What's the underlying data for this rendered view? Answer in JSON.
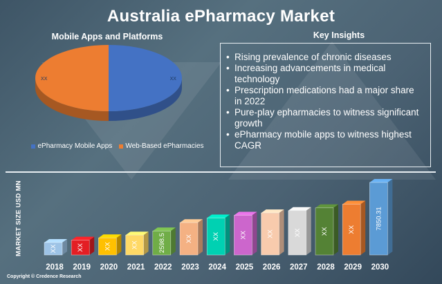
{
  "title": "Australia ePharmacy Market",
  "pie_section": {
    "title": "Mobile Apps and Platforms"
  },
  "insights": {
    "title": "Key Insights",
    "items": [
      "Rising prevalence of chronic diseases",
      "Increasing advancements in medical technology",
      "Prescription medications had a major share in 2022",
      "Pure-play epharmacies to witness significant growth",
      "ePharmacy mobile apps to witness highest CAGR"
    ]
  },
  "copyright": "Copyright © Credence Research",
  "chart_data": [
    {
      "type": "pie",
      "title": "Mobile Apps and Platforms",
      "categories": [
        "ePharmacy Mobile Apps",
        "Web-Based ePharmacies"
      ],
      "values": [
        50,
        50
      ],
      "data_labels": [
        "XX",
        "XX"
      ],
      "colors": [
        "#4472c4",
        "#ed7d31"
      ],
      "legend": "bottom"
    },
    {
      "type": "bar",
      "title": "",
      "ylabel": "MARKET SIZE USD MN",
      "xlabel": "",
      "categories": [
        "2018",
        "2019",
        "2020",
        "2021",
        "2022",
        "2023",
        "2024",
        "2025",
        "2026",
        "2027",
        "2028",
        "2029",
        "2030"
      ],
      "values": [
        1350,
        1600,
        1850,
        2150,
        2598.5,
        3500,
        4000,
        4300,
        4550,
        4800,
        5100,
        5500,
        7850.31
      ],
      "data_labels": [
        "XX",
        "XX",
        "XX",
        "XX",
        "2598.5",
        "XX",
        "XX",
        "XX",
        "XX",
        "XX",
        "XX",
        "XX",
        "7850.31"
      ],
      "colors": [
        "#9dc3e6",
        "#e31e24",
        "#ffc000",
        "#ffd966",
        "#70ad47",
        "#f4b183",
        "#00d1b2",
        "#cc66cc",
        "#f8cbad",
        "#d9d9d9",
        "#548235",
        "#ed7d31",
        "#5b9bd5"
      ],
      "ylim": [
        0,
        8000
      ],
      "grid": false
    }
  ]
}
